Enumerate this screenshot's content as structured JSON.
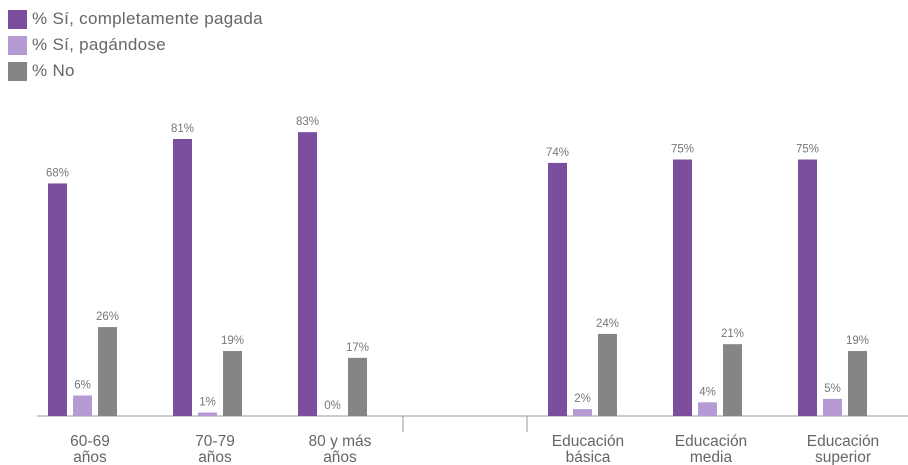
{
  "chart_data": {
    "type": "bar",
    "title": "",
    "xlabel": "",
    "ylabel": "",
    "ylim": [
      0,
      100
    ],
    "grid": false,
    "legend_placement": "top-left",
    "groups": [
      {
        "name": "age",
        "categories": [
          [
            "60-69",
            "años"
          ],
          [
            "70-79",
            "años"
          ],
          [
            "80 y más",
            "años"
          ]
        ],
        "series": [
          {
            "name": "% Sí, completamente pagada",
            "values": [
              68,
              81,
              83
            ],
            "labels": [
              "68%",
              "81%",
              "83%"
            ]
          },
          {
            "name": "% Sí, pagándose",
            "values": [
              6,
              1,
              0
            ],
            "labels": [
              "6%",
              "1%",
              "0%"
            ]
          },
          {
            "name": "% No",
            "values": [
              26,
              19,
              17
            ],
            "labels": [
              "26%",
              "19%",
              "17%"
            ]
          }
        ]
      },
      {
        "name": "education",
        "categories": [
          [
            "Educación",
            "básica"
          ],
          [
            "Educación",
            "media"
          ],
          [
            "Educación",
            "superior"
          ]
        ],
        "series": [
          {
            "name": "% Sí, completamente pagada",
            "values": [
              74,
              75,
              75
            ],
            "labels": [
              "74%",
              "75%",
              "75%"
            ]
          },
          {
            "name": "% Sí, pagándose",
            "values": [
              2,
              4,
              5
            ],
            "labels": [
              "2%",
              "4%",
              "5%"
            ]
          },
          {
            "name": "% No",
            "values": [
              24,
              21,
              19
            ],
            "labels": [
              "24%",
              "21%",
              "19%"
            ]
          }
        ]
      }
    ],
    "colors": [
      "#7b4f9e",
      "#b59ad3",
      "#858585"
    ]
  },
  "legend": {
    "items": [
      {
        "label": "% Sí, completamente pagada",
        "color": "#7b4f9e"
      },
      {
        "label": "% Sí, pagándose",
        "color": "#b59ad3"
      },
      {
        "label": "% No",
        "color": "#858585"
      }
    ]
  }
}
